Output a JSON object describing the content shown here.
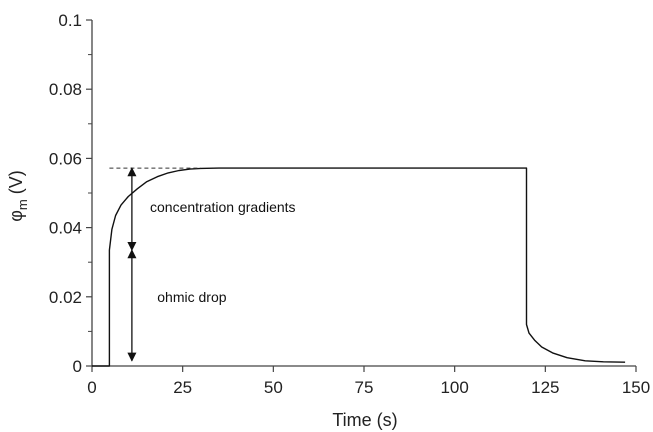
{
  "chart_data": {
    "type": "line",
    "title": "",
    "xlabel": "Time (s)",
    "ylabel_main": "φ",
    "ylabel_sub": "m",
    "ylabel_unit": " (V)",
    "xlim": [
      0,
      150
    ],
    "ylim": [
      0,
      0.1
    ],
    "x_ticks": [
      0,
      25,
      50,
      75,
      100,
      125,
      150
    ],
    "y_ticks": [
      0,
      0.02,
      0.04,
      0.06,
      0.08,
      0.1
    ],
    "y_tick_labels": [
      "0",
      "0.02",
      "0.04",
      "0.06",
      "0.08",
      "0.1"
    ],
    "grid": false,
    "series": [
      {
        "x": [
          0,
          4.8,
          4.8,
          5.5,
          6.5,
          8,
          10,
          12.5,
          15,
          18,
          21,
          24,
          27,
          30,
          35,
          60,
          90,
          119.8,
          119.8,
          120.5,
          122,
          124,
          127,
          131,
          136,
          141,
          147
        ],
        "y": [
          0,
          0,
          0.0335,
          0.0395,
          0.0435,
          0.0465,
          0.049,
          0.0512,
          0.0532,
          0.0547,
          0.0558,
          0.0565,
          0.0569,
          0.0571,
          0.0572,
          0.0572,
          0.0572,
          0.0572,
          0.012,
          0.0095,
          0.0075,
          0.0055,
          0.0038,
          0.0024,
          0.0015,
          0.0012,
          0.0011
        ]
      }
    ],
    "reference_line": {
      "y": 0.0572,
      "x_from": 4.8,
      "x_to": 30,
      "style": "dashed"
    },
    "arrows": [
      {
        "x": 11,
        "y_from": 0.0572,
        "y_to": 0.0335
      },
      {
        "x": 11,
        "y_from": 0.0335,
        "y_to": 0.0015
      }
    ],
    "annotations": [
      {
        "text": "concentration gradients",
        "x": 16,
        "y": 0.0445
      },
      {
        "text": "ohmic drop",
        "x": 18,
        "y": 0.0185
      }
    ]
  }
}
